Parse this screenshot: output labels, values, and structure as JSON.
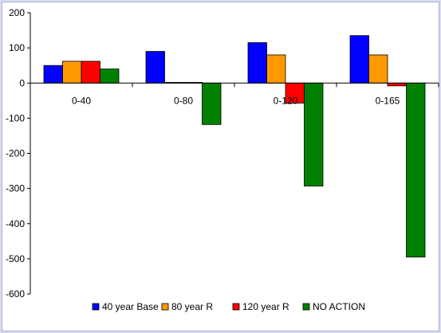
{
  "chart_data": {
    "type": "bar",
    "title": "",
    "xlabel": "",
    "ylabel": "",
    "categories": [
      "0-40",
      "0-80",
      "0-120",
      "0-165"
    ],
    "ylim": [
      -600,
      200
    ],
    "yticks": [
      200,
      100,
      0,
      -100,
      -200,
      -300,
      -400,
      -500,
      -600
    ],
    "grid": false,
    "legend_position": "bottom",
    "series": [
      {
        "name": "40 year Base",
        "color": "#0000ff",
        "values": [
          50,
          90,
          115,
          135
        ]
      },
      {
        "name": "80 year R",
        "color": "#ff9900",
        "values": [
          62,
          2,
          80,
          80
        ]
      },
      {
        "name": "120 year R",
        "color": "#ff0000",
        "values": [
          62,
          2,
          -57,
          -8
        ]
      },
      {
        "name": "NO ACTION",
        "color": "#008000",
        "values": [
          40,
          -118,
          -293,
          -495
        ]
      }
    ]
  }
}
